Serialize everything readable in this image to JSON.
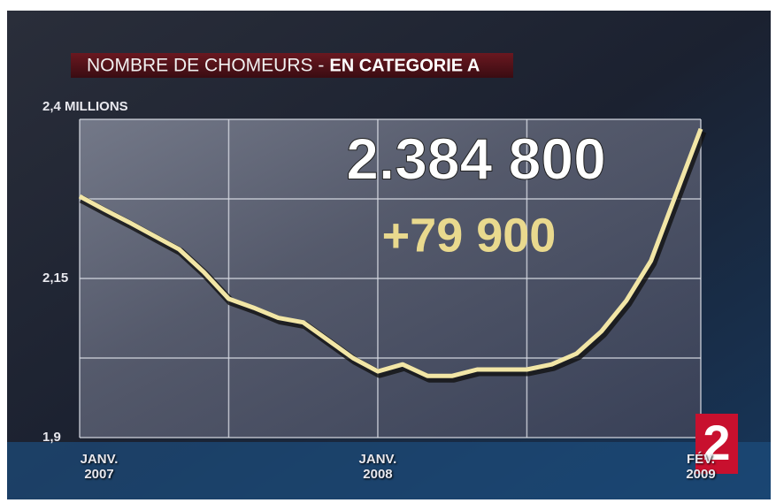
{
  "chart_data": {
    "type": "line",
    "title": "NOMBRE DE CHOMEURS -",
    "subtitle": "EN CATEGORIE A",
    "annotations": [
      "2.384 800",
      "+79 900"
    ],
    "channel_logo": "2",
    "categories": [
      "JANV. 2007",
      null,
      null,
      null,
      null,
      null,
      null,
      null,
      null,
      null,
      null,
      null,
      "JANV. 2008",
      null,
      null,
      null,
      null,
      null,
      null,
      null,
      null,
      null,
      null,
      null,
      null,
      "FÉV. 2009"
    ],
    "series": [
      {
        "color": "#f2e6a6",
        "values": [
          2.279,
          2.258,
          2.238,
          2.217,
          2.196,
          2.16,
          2.118,
          2.104,
          2.088,
          2.081,
          2.053,
          2.025,
          2.004,
          2.015,
          1.997,
          1.997,
          2.007,
          2.007,
          2.007,
          2.015,
          2.032,
          2.067,
          2.115,
          2.178,
          2.282,
          2.385
        ]
      }
    ],
    "ylim": [
      1.9,
      2.4
    ],
    "yticks": [
      {
        "value": 1.9,
        "label": "1,9"
      },
      {
        "value": 2.15,
        "label": "2,15"
      },
      {
        "value": 2.4,
        "label": "2,4 MILLIONS"
      }
    ],
    "yminor": [
      2.025,
      2.275
    ],
    "grid": true
  }
}
